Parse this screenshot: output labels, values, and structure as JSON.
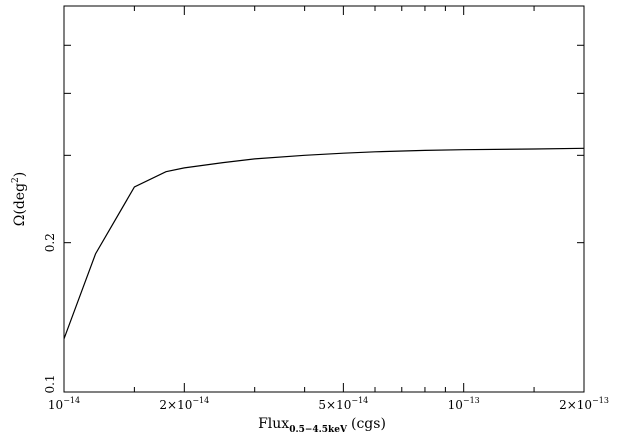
{
  "chart_data": {
    "type": "line",
    "xscale": "log",
    "yscale": "log",
    "xlim": [
      1e-14,
      2e-13
    ],
    "ylim": [
      0.1,
      0.6
    ],
    "xlabel": {
      "main": "Flux",
      "sub": "0.5−4.5keV",
      "unit": "(cgs)"
    },
    "ylabel": {
      "main": "Ω(deg",
      "sup": "2",
      "close": ")"
    },
    "x_tick_labels": [
      {
        "value": 1e-14,
        "mantissa": "10",
        "exp": "−14"
      },
      {
        "value": 2e-14,
        "mantissa": "2×10",
        "exp": "−14"
      },
      {
        "value": 5e-14,
        "mantissa": "5×10",
        "exp": "−14"
      },
      {
        "value": 1e-13,
        "mantissa": "10",
        "exp": "−13"
      },
      {
        "value": 2e-13,
        "mantissa": "2×10",
        "exp": "−13"
      }
    ],
    "x_ticks": [
      1e-14,
      1.5e-14,
      2e-14,
      3e-14,
      4e-14,
      5e-14,
      6e-14,
      7e-14,
      8e-14,
      9e-14,
      1e-13,
      1.5e-13,
      2e-13
    ],
    "y_tick_labels": [
      {
        "value": 0.1,
        "label": "0.1"
      },
      {
        "value": 0.2,
        "label": "0.2"
      }
    ],
    "y_ticks": [
      0.1,
      0.2,
      0.3,
      0.4,
      0.5
    ],
    "series": [
      {
        "x": [
          1e-14,
          1.2e-14,
          1.5e-14,
          1.8e-14,
          2e-14,
          2.5e-14,
          3e-14,
          4e-14,
          5e-14,
          6e-14,
          8e-14,
          1e-13,
          1.5e-13,
          2e-13
        ],
        "y": [
          0.128,
          0.19,
          0.259,
          0.278,
          0.283,
          0.29,
          0.295,
          0.3,
          0.303,
          0.305,
          0.307,
          0.308,
          0.309,
          0.31
        ]
      }
    ]
  }
}
